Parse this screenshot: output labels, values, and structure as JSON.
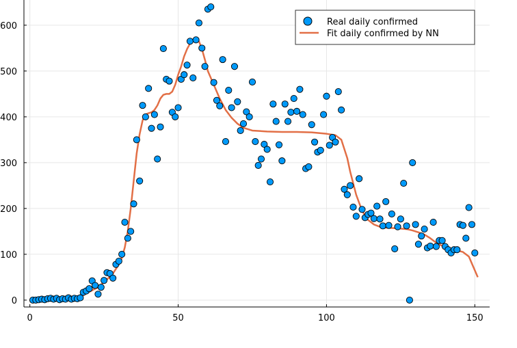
{
  "chart_data": {
    "type": "scatter",
    "title": "",
    "xlabel": "",
    "ylabel": "",
    "xlim": [
      -2,
      155
    ],
    "ylim": [
      -15,
      655
    ],
    "x_ticks": [
      0,
      50,
      100,
      150
    ],
    "y_ticks": [
      0,
      100,
      200,
      300,
      400,
      500,
      600
    ],
    "y_tick_labels": [
      "0",
      "100",
      "200",
      "300",
      "400",
      "500",
      "600"
    ],
    "grid": true,
    "legend_position": "top-right",
    "series": [
      {
        "name": "Real daily confirmed",
        "kind": "scatter",
        "color": "#009AFA",
        "points": [
          [
            1,
            0
          ],
          [
            2,
            0
          ],
          [
            3,
            1
          ],
          [
            4,
            2
          ],
          [
            5,
            1
          ],
          [
            6,
            3
          ],
          [
            7,
            4
          ],
          [
            8,
            2
          ],
          [
            9,
            4
          ],
          [
            10,
            1
          ],
          [
            11,
            3
          ],
          [
            12,
            2
          ],
          [
            13,
            5
          ],
          [
            14,
            2
          ],
          [
            15,
            4
          ],
          [
            16,
            3
          ],
          [
            17,
            5
          ],
          [
            18,
            17
          ],
          [
            19,
            20
          ],
          [
            20,
            25
          ],
          [
            21,
            42
          ],
          [
            22,
            32
          ],
          [
            23,
            13
          ],
          [
            24,
            28
          ],
          [
            25,
            43
          ],
          [
            26,
            60
          ],
          [
            27,
            58
          ],
          [
            28,
            48
          ],
          [
            29,
            78
          ],
          [
            30,
            85
          ],
          [
            31,
            100
          ],
          [
            32,
            170
          ],
          [
            33,
            135
          ],
          [
            34,
            150
          ],
          [
            35,
            210
          ],
          [
            36,
            350
          ],
          [
            37,
            260
          ],
          [
            38,
            425
          ],
          [
            39,
            400
          ],
          [
            40,
            462
          ],
          [
            41,
            375
          ],
          [
            42,
            405
          ],
          [
            43,
            308
          ],
          [
            44,
            378
          ],
          [
            45,
            549
          ],
          [
            46,
            482
          ],
          [
            47,
            478
          ],
          [
            48,
            410
          ],
          [
            49,
            400
          ],
          [
            50,
            420
          ],
          [
            51,
            482
          ],
          [
            52,
            492
          ],
          [
            53,
            513
          ],
          [
            54,
            565
          ],
          [
            55,
            485
          ],
          [
            56,
            568
          ],
          [
            57,
            605
          ],
          [
            58,
            550
          ],
          [
            59,
            510
          ],
          [
            60,
            635
          ],
          [
            61,
            640
          ],
          [
            62,
            475
          ],
          [
            63,
            436
          ],
          [
            64,
            424
          ],
          [
            65,
            525
          ],
          [
            66,
            346
          ],
          [
            67,
            458
          ],
          [
            68,
            420
          ],
          [
            69,
            510
          ],
          [
            70,
            433
          ],
          [
            71,
            370
          ],
          [
            72,
            385
          ],
          [
            73,
            411
          ],
          [
            74,
            400
          ],
          [
            75,
            476
          ],
          [
            76,
            346
          ],
          [
            77,
            294
          ],
          [
            78,
            308
          ],
          [
            79,
            340
          ],
          [
            80,
            329
          ],
          [
            81,
            258
          ],
          [
            82,
            428
          ],
          [
            83,
            390
          ],
          [
            84,
            339
          ],
          [
            85,
            304
          ],
          [
            86,
            428
          ],
          [
            87,
            390
          ],
          [
            88,
            410
          ],
          [
            89,
            440
          ],
          [
            90,
            412
          ],
          [
            91,
            460
          ],
          [
            92,
            405
          ],
          [
            93,
            287
          ],
          [
            94,
            291
          ],
          [
            95,
            383
          ],
          [
            96,
            345
          ],
          [
            97,
            323
          ],
          [
            98,
            327
          ],
          [
            99,
            405
          ],
          [
            100,
            445
          ],
          [
            101,
            338
          ],
          [
            102,
            355
          ],
          [
            103,
            345
          ],
          [
            104,
            455
          ],
          [
            105,
            415
          ],
          [
            106,
            242
          ],
          [
            107,
            230
          ],
          [
            108,
            250
          ],
          [
            109,
            203
          ],
          [
            110,
            183
          ],
          [
            111,
            265
          ],
          [
            112,
            198
          ],
          [
            113,
            180
          ],
          [
            114,
            187
          ],
          [
            115,
            190
          ],
          [
            116,
            178
          ],
          [
            117,
            205
          ],
          [
            118,
            177
          ],
          [
            119,
            162
          ],
          [
            120,
            215
          ],
          [
            121,
            163
          ],
          [
            122,
            188
          ],
          [
            123,
            112
          ],
          [
            124,
            160
          ],
          [
            125,
            177
          ],
          [
            126,
            255
          ],
          [
            127,
            162
          ],
          [
            128,
            0
          ],
          [
            129,
            300
          ],
          [
            130,
            165
          ],
          [
            131,
            122
          ],
          [
            132,
            140
          ],
          [
            133,
            155
          ],
          [
            134,
            114
          ],
          [
            135,
            118
          ],
          [
            136,
            170
          ],
          [
            137,
            117
          ],
          [
            138,
            130
          ],
          [
            139,
            130
          ],
          [
            140,
            117
          ],
          [
            141,
            110
          ],
          [
            142,
            103
          ],
          [
            143,
            110
          ],
          [
            144,
            110
          ],
          [
            145,
            165
          ],
          [
            146,
            163
          ],
          [
            147,
            135
          ],
          [
            148,
            202
          ],
          [
            149,
            165
          ],
          [
            150,
            103
          ]
        ]
      },
      {
        "name": "Fit daily confirmed by NN",
        "kind": "line",
        "color": "#E26F46",
        "points": [
          [
            1,
            0
          ],
          [
            5,
            1
          ],
          [
            10,
            2
          ],
          [
            14,
            3
          ],
          [
            17,
            7
          ],
          [
            20,
            18
          ],
          [
            23,
            28
          ],
          [
            26,
            45
          ],
          [
            28,
            58
          ],
          [
            30,
            78
          ],
          [
            31,
            92
          ],
          [
            32,
            115
          ],
          [
            33,
            150
          ],
          [
            34,
            200
          ],
          [
            35,
            260
          ],
          [
            36,
            320
          ],
          [
            37,
            362
          ],
          [
            38,
            392
          ],
          [
            39,
            405
          ],
          [
            40,
            408
          ],
          [
            41,
            410
          ],
          [
            42,
            415
          ],
          [
            43,
            425
          ],
          [
            44,
            440
          ],
          [
            45,
            448
          ],
          [
            46,
            450
          ],
          [
            47,
            450
          ],
          [
            48,
            455
          ],
          [
            49,
            470
          ],
          [
            50,
            492
          ],
          [
            51,
            510
          ],
          [
            52,
            532
          ],
          [
            53,
            548
          ],
          [
            54,
            560
          ],
          [
            55,
            568
          ],
          [
            56,
            570
          ],
          [
            57,
            565
          ],
          [
            58,
            548
          ],
          [
            59,
            525
          ],
          [
            60,
            500
          ],
          [
            62,
            470
          ],
          [
            64,
            440
          ],
          [
            66,
            415
          ],
          [
            68,
            398
          ],
          [
            70,
            385
          ],
          [
            72,
            376
          ],
          [
            75,
            370
          ],
          [
            80,
            368
          ],
          [
            85,
            367
          ],
          [
            90,
            367
          ],
          [
            95,
            366
          ],
          [
            100,
            363
          ],
          [
            103,
            360
          ],
          [
            105,
            350
          ],
          [
            107,
            310
          ],
          [
            108,
            280
          ],
          [
            110,
            230
          ],
          [
            112,
            195
          ],
          [
            114,
            175
          ],
          [
            116,
            165
          ],
          [
            118,
            160
          ],
          [
            120,
            158
          ],
          [
            123,
            157
          ],
          [
            125,
            156
          ],
          [
            127,
            155
          ],
          [
            129,
            152
          ],
          [
            131,
            148
          ],
          [
            133,
            143
          ],
          [
            135,
            135
          ],
          [
            137,
            125
          ],
          [
            140,
            115
          ],
          [
            143,
            110
          ],
          [
            146,
            105
          ],
          [
            148,
            95
          ],
          [
            149,
            80
          ],
          [
            150,
            65
          ],
          [
            151,
            50
          ]
        ]
      }
    ]
  }
}
